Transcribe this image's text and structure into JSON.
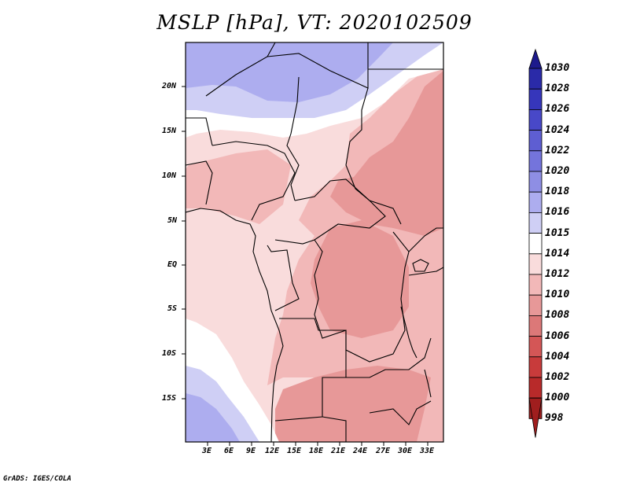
{
  "title": "MSLP [hPa], VT: 2020102509",
  "credit": "GrADS: IGES/COLA",
  "lat_labels": [
    "20N",
    "15N",
    "10N",
    "5N",
    "EQ",
    "5S",
    "10S",
    "15S"
  ],
  "lon_labels": [
    "3E",
    "6E",
    "9E",
    "12E",
    "15E",
    "18E",
    "21E",
    "24E",
    "27E",
    "30E",
    "33E"
  ],
  "colorbar": {
    "levels": [
      "1030",
      "1028",
      "1026",
      "1024",
      "1022",
      "1020",
      "1018",
      "1016",
      "1015",
      "1014",
      "1012",
      "1010",
      "1008",
      "1006",
      "1004",
      "1002",
      "1000",
      "998"
    ],
    "colors": [
      "#1d1a8c",
      "#2a2aa8",
      "#3636bb",
      "#4848c8",
      "#5e5ed2",
      "#7474dc",
      "#8e8ee4",
      "#adadef",
      "#cfcff5",
      "#ffffff",
      "#f9dcdc",
      "#f2b8b8",
      "#e79898",
      "#dc7878",
      "#d45656",
      "#c83b3b",
      "#b82a2a",
      "#a01e1e"
    ]
  },
  "field_colors": {
    "p1016": "#adadef",
    "p1015": "#cfcff5",
    "p1014": "#ffffff",
    "p1012": "#f9dcdc",
    "p1010": "#f2b8b8",
    "p1008": "#e79898"
  }
}
